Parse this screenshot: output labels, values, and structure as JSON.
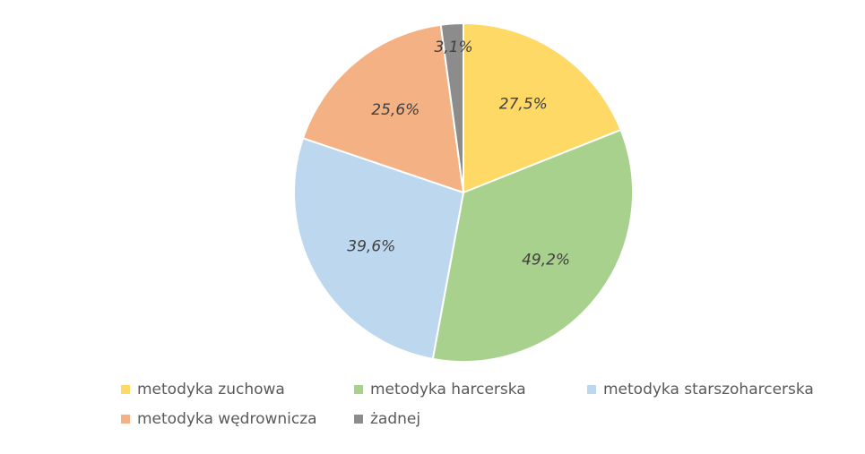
{
  "chart_data": {
    "type": "pie",
    "title": "",
    "slices": [
      {
        "label": "metodyka zuchowa",
        "value": 27.5,
        "display": "27,5%",
        "color": "#FFD966"
      },
      {
        "label": "metodyka harcerska",
        "value": 49.2,
        "display": "49,2%",
        "color": "#A9D18E"
      },
      {
        "label": "metodyka starszoharcerska",
        "value": 39.6,
        "display": "39,6%",
        "color": "#BDD7EE"
      },
      {
        "label": "metodyka wędrownicza",
        "value": 25.6,
        "display": "25,6%",
        "color": "#F4B183"
      },
      {
        "label": "żadnej",
        "value": 3.1,
        "display": "3,1%",
        "color": "#8C8C8C"
      }
    ],
    "legend_position": "bottom"
  }
}
